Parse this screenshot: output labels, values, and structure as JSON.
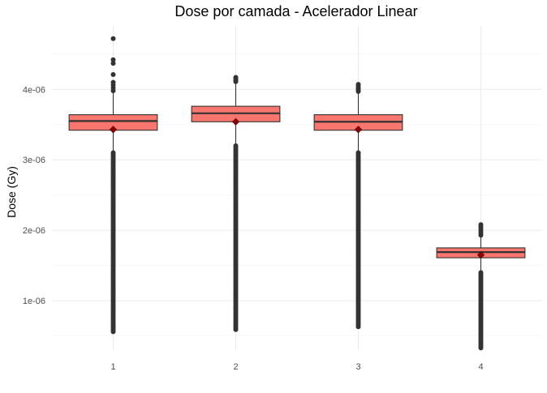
{
  "chart_data": {
    "type": "box",
    "title": "Dose por camada - Acelerador Linear",
    "xlabel": "",
    "ylabel": "Dose (Gy)",
    "ylim": [
      3e-07,
      4.9e-06
    ],
    "y_ticks": [
      1e-06,
      2e-06,
      3e-06,
      4e-06
    ],
    "y_tick_labels": [
      "1e-06",
      "2e-06",
      "3e-06",
      "4e-06"
    ],
    "grid": true,
    "legend": "none",
    "categories": [
      "1",
      "2",
      "3",
      "4"
    ],
    "boxes": [
      {
        "category": "1",
        "q1": 3.42e-06,
        "median": 3.55e-06,
        "q3": 3.64e-06,
        "mean": 3.43e-06,
        "whisker_low": 3.1e-06,
        "whisker_high": 3.95e-06,
        "outlier_range_low": [
          5.6e-07,
          3.1e-06
        ],
        "outliers_high": [
          3.98e-06,
          4.02e-06,
          4.06e-06,
          4.1e-06,
          4.21e-06,
          4.37e-06,
          4.42e-06,
          4.72e-06
        ]
      },
      {
        "category": "2",
        "q1": 3.54e-06,
        "median": 3.66e-06,
        "q3": 3.76e-06,
        "mean": 3.54e-06,
        "whisker_low": 3.2e-06,
        "whisker_high": 4.1e-06,
        "outlier_range_low": [
          5.9e-07,
          3.2e-06
        ],
        "outliers_high": [
          4.11e-06,
          4.13e-06,
          4.15e-06,
          4.17e-06
        ]
      },
      {
        "category": "3",
        "q1": 3.42e-06,
        "median": 3.54e-06,
        "q3": 3.64e-06,
        "mean": 3.43e-06,
        "whisker_low": 3.1e-06,
        "whisker_high": 3.95e-06,
        "outlier_range_low": [
          6.3e-07,
          3.1e-06
        ],
        "outliers_high": [
          3.97e-06,
          3.99e-06,
          4.01e-06,
          4.04e-06,
          4.07e-06
        ]
      },
      {
        "category": "4",
        "q1": 1.61e-06,
        "median": 1.69e-06,
        "q3": 1.75e-06,
        "mean": 1.65e-06,
        "whisker_low": 1.4e-06,
        "whisker_high": 1.92e-06,
        "outlier_range_low": [
          3.3e-07,
          1.4e-06
        ],
        "outliers_high": [
          1.93e-06,
          1.96e-06,
          1.99e-06,
          2.02e-06,
          2.05e-06,
          2.08e-06
        ]
      }
    ],
    "colors": {
      "box_fill": "#f8766d",
      "box_line": "#333333",
      "outlier": "#333333",
      "mean_marker": "#8b0000",
      "grid_major": "#ebebeb",
      "grid_minor": "#f5f5f5"
    }
  }
}
